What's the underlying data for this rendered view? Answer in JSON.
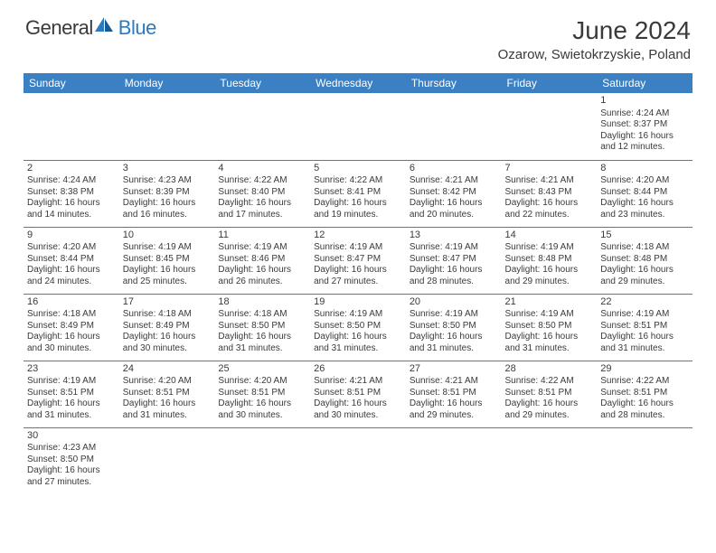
{
  "logo": {
    "general": "General",
    "blue": "Blue"
  },
  "header": {
    "month_title": "June 2024",
    "location": "Ozarow, Swietokrzyskie, Poland"
  },
  "colors": {
    "header_bg": "#3a80c3",
    "header_text": "#ffffff",
    "text": "#3a3a3a",
    "logo_blue": "#2b7bbf",
    "cell_border": "#3a80c3"
  },
  "fonts": {
    "title_pt": 28,
    "location_pt": 15,
    "dayheader_pt": 12,
    "cell_pt": 10
  },
  "day_headers": [
    "Sunday",
    "Monday",
    "Tuesday",
    "Wednesday",
    "Thursday",
    "Friday",
    "Saturday"
  ],
  "weeks": [
    [
      null,
      null,
      null,
      null,
      null,
      null,
      {
        "n": "1",
        "sr": "Sunrise: 4:24 AM",
        "ss": "Sunset: 8:37 PM",
        "dl": "Daylight: 16 hours and 12 minutes."
      }
    ],
    [
      {
        "n": "2",
        "sr": "Sunrise: 4:24 AM",
        "ss": "Sunset: 8:38 PM",
        "dl": "Daylight: 16 hours and 14 minutes."
      },
      {
        "n": "3",
        "sr": "Sunrise: 4:23 AM",
        "ss": "Sunset: 8:39 PM",
        "dl": "Daylight: 16 hours and 16 minutes."
      },
      {
        "n": "4",
        "sr": "Sunrise: 4:22 AM",
        "ss": "Sunset: 8:40 PM",
        "dl": "Daylight: 16 hours and 17 minutes."
      },
      {
        "n": "5",
        "sr": "Sunrise: 4:22 AM",
        "ss": "Sunset: 8:41 PM",
        "dl": "Daylight: 16 hours and 19 minutes."
      },
      {
        "n": "6",
        "sr": "Sunrise: 4:21 AM",
        "ss": "Sunset: 8:42 PM",
        "dl": "Daylight: 16 hours and 20 minutes."
      },
      {
        "n": "7",
        "sr": "Sunrise: 4:21 AM",
        "ss": "Sunset: 8:43 PM",
        "dl": "Daylight: 16 hours and 22 minutes."
      },
      {
        "n": "8",
        "sr": "Sunrise: 4:20 AM",
        "ss": "Sunset: 8:44 PM",
        "dl": "Daylight: 16 hours and 23 minutes."
      }
    ],
    [
      {
        "n": "9",
        "sr": "Sunrise: 4:20 AM",
        "ss": "Sunset: 8:44 PM",
        "dl": "Daylight: 16 hours and 24 minutes."
      },
      {
        "n": "10",
        "sr": "Sunrise: 4:19 AM",
        "ss": "Sunset: 8:45 PM",
        "dl": "Daylight: 16 hours and 25 minutes."
      },
      {
        "n": "11",
        "sr": "Sunrise: 4:19 AM",
        "ss": "Sunset: 8:46 PM",
        "dl": "Daylight: 16 hours and 26 minutes."
      },
      {
        "n": "12",
        "sr": "Sunrise: 4:19 AM",
        "ss": "Sunset: 8:47 PM",
        "dl": "Daylight: 16 hours and 27 minutes."
      },
      {
        "n": "13",
        "sr": "Sunrise: 4:19 AM",
        "ss": "Sunset: 8:47 PM",
        "dl": "Daylight: 16 hours and 28 minutes."
      },
      {
        "n": "14",
        "sr": "Sunrise: 4:19 AM",
        "ss": "Sunset: 8:48 PM",
        "dl": "Daylight: 16 hours and 29 minutes."
      },
      {
        "n": "15",
        "sr": "Sunrise: 4:18 AM",
        "ss": "Sunset: 8:48 PM",
        "dl": "Daylight: 16 hours and 29 minutes."
      }
    ],
    [
      {
        "n": "16",
        "sr": "Sunrise: 4:18 AM",
        "ss": "Sunset: 8:49 PM",
        "dl": "Daylight: 16 hours and 30 minutes."
      },
      {
        "n": "17",
        "sr": "Sunrise: 4:18 AM",
        "ss": "Sunset: 8:49 PM",
        "dl": "Daylight: 16 hours and 30 minutes."
      },
      {
        "n": "18",
        "sr": "Sunrise: 4:18 AM",
        "ss": "Sunset: 8:50 PM",
        "dl": "Daylight: 16 hours and 31 minutes."
      },
      {
        "n": "19",
        "sr": "Sunrise: 4:19 AM",
        "ss": "Sunset: 8:50 PM",
        "dl": "Daylight: 16 hours and 31 minutes."
      },
      {
        "n": "20",
        "sr": "Sunrise: 4:19 AM",
        "ss": "Sunset: 8:50 PM",
        "dl": "Daylight: 16 hours and 31 minutes."
      },
      {
        "n": "21",
        "sr": "Sunrise: 4:19 AM",
        "ss": "Sunset: 8:50 PM",
        "dl": "Daylight: 16 hours and 31 minutes."
      },
      {
        "n": "22",
        "sr": "Sunrise: 4:19 AM",
        "ss": "Sunset: 8:51 PM",
        "dl": "Daylight: 16 hours and 31 minutes."
      }
    ],
    [
      {
        "n": "23",
        "sr": "Sunrise: 4:19 AM",
        "ss": "Sunset: 8:51 PM",
        "dl": "Daylight: 16 hours and 31 minutes."
      },
      {
        "n": "24",
        "sr": "Sunrise: 4:20 AM",
        "ss": "Sunset: 8:51 PM",
        "dl": "Daylight: 16 hours and 31 minutes."
      },
      {
        "n": "25",
        "sr": "Sunrise: 4:20 AM",
        "ss": "Sunset: 8:51 PM",
        "dl": "Daylight: 16 hours and 30 minutes."
      },
      {
        "n": "26",
        "sr": "Sunrise: 4:21 AM",
        "ss": "Sunset: 8:51 PM",
        "dl": "Daylight: 16 hours and 30 minutes."
      },
      {
        "n": "27",
        "sr": "Sunrise: 4:21 AM",
        "ss": "Sunset: 8:51 PM",
        "dl": "Daylight: 16 hours and 29 minutes."
      },
      {
        "n": "28",
        "sr": "Sunrise: 4:22 AM",
        "ss": "Sunset: 8:51 PM",
        "dl": "Daylight: 16 hours and 29 minutes."
      },
      {
        "n": "29",
        "sr": "Sunrise: 4:22 AM",
        "ss": "Sunset: 8:51 PM",
        "dl": "Daylight: 16 hours and 28 minutes."
      }
    ],
    [
      {
        "n": "30",
        "sr": "Sunrise: 4:23 AM",
        "ss": "Sunset: 8:50 PM",
        "dl": "Daylight: 16 hours and 27 minutes."
      },
      null,
      null,
      null,
      null,
      null,
      null
    ]
  ]
}
